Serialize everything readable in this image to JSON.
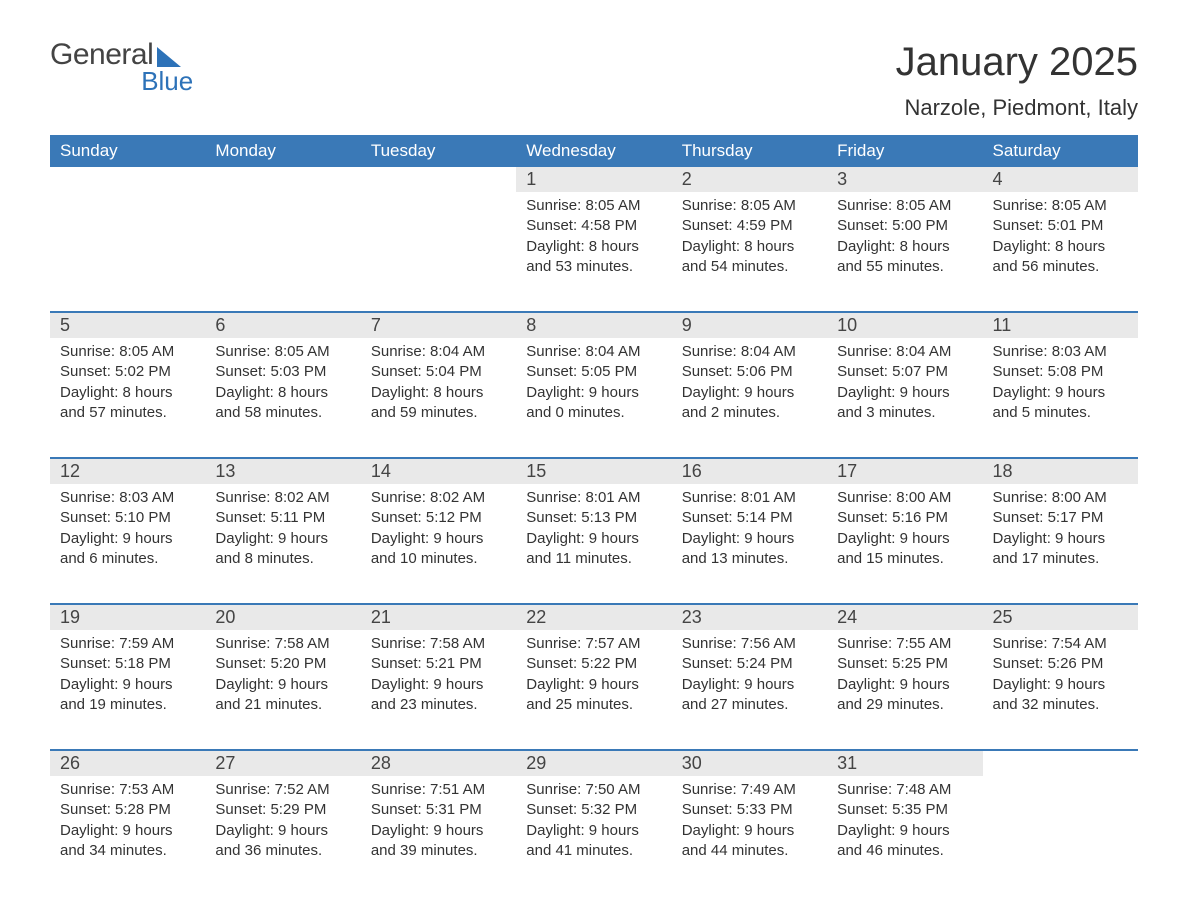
{
  "logo": {
    "text1": "General",
    "text2": "Blue"
  },
  "title": "January 2025",
  "location": "Narzole, Piedmont, Italy",
  "colors": {
    "brand_blue": "#2d72b8",
    "header_blue": "#3a79b7",
    "daynum_bg": "#e9e9e9",
    "text": "#333333",
    "bg": "#ffffff"
  },
  "day_names": [
    "Sunday",
    "Monday",
    "Tuesday",
    "Wednesday",
    "Thursday",
    "Friday",
    "Saturday"
  ],
  "weeks": [
    [
      null,
      null,
      null,
      {
        "n": "1",
        "sr": "8:05 AM",
        "ss": "4:58 PM",
        "dh": "8",
        "dm": "53"
      },
      {
        "n": "2",
        "sr": "8:05 AM",
        "ss": "4:59 PM",
        "dh": "8",
        "dm": "54"
      },
      {
        "n": "3",
        "sr": "8:05 AM",
        "ss": "5:00 PM",
        "dh": "8",
        "dm": "55"
      },
      {
        "n": "4",
        "sr": "8:05 AM",
        "ss": "5:01 PM",
        "dh": "8",
        "dm": "56"
      }
    ],
    [
      {
        "n": "5",
        "sr": "8:05 AM",
        "ss": "5:02 PM",
        "dh": "8",
        "dm": "57"
      },
      {
        "n": "6",
        "sr": "8:05 AM",
        "ss": "5:03 PM",
        "dh": "8",
        "dm": "58"
      },
      {
        "n": "7",
        "sr": "8:04 AM",
        "ss": "5:04 PM",
        "dh": "8",
        "dm": "59"
      },
      {
        "n": "8",
        "sr": "8:04 AM",
        "ss": "5:05 PM",
        "dh": "9",
        "dm": "0"
      },
      {
        "n": "9",
        "sr": "8:04 AM",
        "ss": "5:06 PM",
        "dh": "9",
        "dm": "2"
      },
      {
        "n": "10",
        "sr": "8:04 AM",
        "ss": "5:07 PM",
        "dh": "9",
        "dm": "3"
      },
      {
        "n": "11",
        "sr": "8:03 AM",
        "ss": "5:08 PM",
        "dh": "9",
        "dm": "5"
      }
    ],
    [
      {
        "n": "12",
        "sr": "8:03 AM",
        "ss": "5:10 PM",
        "dh": "9",
        "dm": "6"
      },
      {
        "n": "13",
        "sr": "8:02 AM",
        "ss": "5:11 PM",
        "dh": "9",
        "dm": "8"
      },
      {
        "n": "14",
        "sr": "8:02 AM",
        "ss": "5:12 PM",
        "dh": "9",
        "dm": "10"
      },
      {
        "n": "15",
        "sr": "8:01 AM",
        "ss": "5:13 PM",
        "dh": "9",
        "dm": "11"
      },
      {
        "n": "16",
        "sr": "8:01 AM",
        "ss": "5:14 PM",
        "dh": "9",
        "dm": "13"
      },
      {
        "n": "17",
        "sr": "8:00 AM",
        "ss": "5:16 PM",
        "dh": "9",
        "dm": "15"
      },
      {
        "n": "18",
        "sr": "8:00 AM",
        "ss": "5:17 PM",
        "dh": "9",
        "dm": "17"
      }
    ],
    [
      {
        "n": "19",
        "sr": "7:59 AM",
        "ss": "5:18 PM",
        "dh": "9",
        "dm": "19"
      },
      {
        "n": "20",
        "sr": "7:58 AM",
        "ss": "5:20 PM",
        "dh": "9",
        "dm": "21"
      },
      {
        "n": "21",
        "sr": "7:58 AM",
        "ss": "5:21 PM",
        "dh": "9",
        "dm": "23"
      },
      {
        "n": "22",
        "sr": "7:57 AM",
        "ss": "5:22 PM",
        "dh": "9",
        "dm": "25"
      },
      {
        "n": "23",
        "sr": "7:56 AM",
        "ss": "5:24 PM",
        "dh": "9",
        "dm": "27"
      },
      {
        "n": "24",
        "sr": "7:55 AM",
        "ss": "5:25 PM",
        "dh": "9",
        "dm": "29"
      },
      {
        "n": "25",
        "sr": "7:54 AM",
        "ss": "5:26 PM",
        "dh": "9",
        "dm": "32"
      }
    ],
    [
      {
        "n": "26",
        "sr": "7:53 AM",
        "ss": "5:28 PM",
        "dh": "9",
        "dm": "34"
      },
      {
        "n": "27",
        "sr": "7:52 AM",
        "ss": "5:29 PM",
        "dh": "9",
        "dm": "36"
      },
      {
        "n": "28",
        "sr": "7:51 AM",
        "ss": "5:31 PM",
        "dh": "9",
        "dm": "39"
      },
      {
        "n": "29",
        "sr": "7:50 AM",
        "ss": "5:32 PM",
        "dh": "9",
        "dm": "41"
      },
      {
        "n": "30",
        "sr": "7:49 AM",
        "ss": "5:33 PM",
        "dh": "9",
        "dm": "44"
      },
      {
        "n": "31",
        "sr": "7:48 AM",
        "ss": "5:35 PM",
        "dh": "9",
        "dm": "46"
      },
      null
    ]
  ],
  "labels": {
    "sunrise": "Sunrise: ",
    "sunset": "Sunset: ",
    "daylight1": "Daylight: ",
    "daylight2": " hours and ",
    "daylight3": " minutes."
  }
}
